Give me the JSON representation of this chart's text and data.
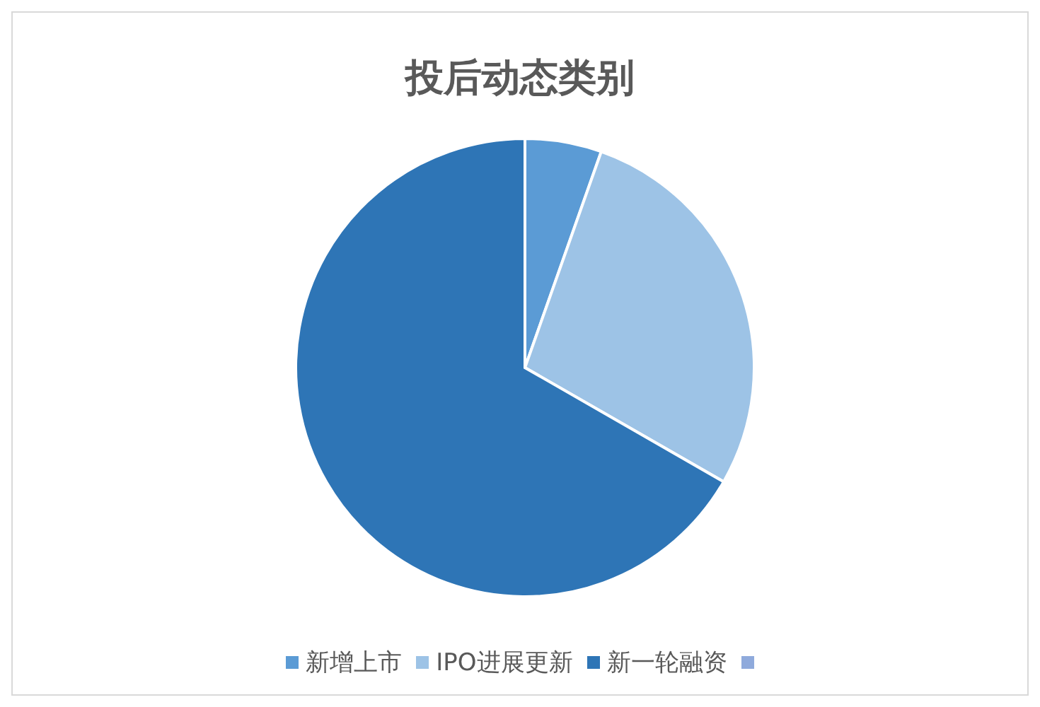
{
  "chart_data": {
    "type": "pie",
    "title": "投后动态类别",
    "categories": [
      "新增上市",
      "IPO进展更新",
      "新一轮融资",
      null
    ],
    "values": [
      5.4,
      27.9,
      66.7,
      0
    ],
    "colors": [
      "#5b9bd5",
      "#9dc3e6",
      "#2e75b6",
      "#8faadc"
    ],
    "legend": "bottom"
  }
}
